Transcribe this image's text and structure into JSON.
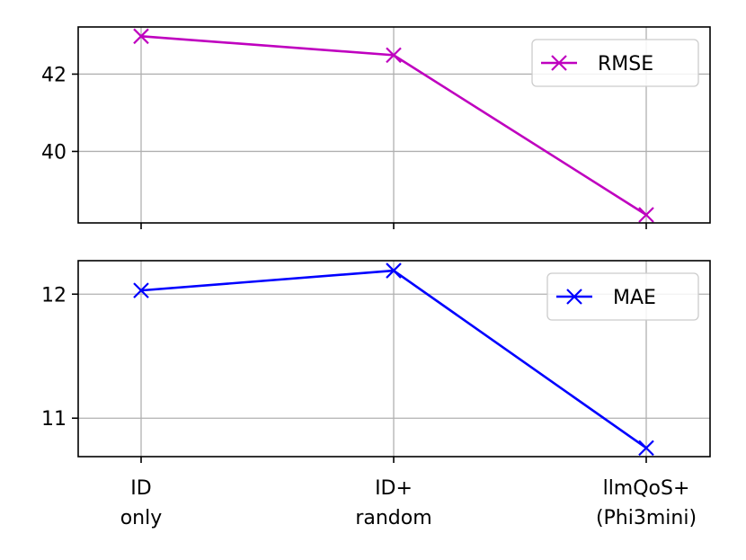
{
  "chart_data": [
    {
      "type": "line",
      "categories": [
        [
          "ID",
          "only"
        ],
        [
          "ID+",
          "random"
        ],
        [
          "llmQoS+",
          "(Phi3mini)"
        ]
      ],
      "series": [
        {
          "name": "RMSE",
          "values": [
            42.98,
            42.49,
            38.36
          ],
          "color": "#bf00bf",
          "marker": "x"
        }
      ],
      "yticks": [
        40,
        42
      ],
      "ylim": [
        38.15,
        43.22
      ],
      "grid": true,
      "legend": "top-right",
      "title": "",
      "xlabel": "",
      "ylabel": ""
    },
    {
      "type": "line",
      "categories": [
        [
          "ID",
          "only"
        ],
        [
          "ID+",
          "random"
        ],
        [
          "llmQoS+",
          "(Phi3mini)"
        ]
      ],
      "series": [
        {
          "name": "MAE",
          "values": [
            12.03,
            12.19,
            10.76
          ],
          "color": "#0000ff",
          "marker": "x"
        }
      ],
      "yticks": [
        11,
        12
      ],
      "ylim": [
        10.69,
        12.27
      ],
      "grid": true,
      "legend": "top-right",
      "title": "",
      "xlabel": "",
      "ylabel": ""
    }
  ]
}
